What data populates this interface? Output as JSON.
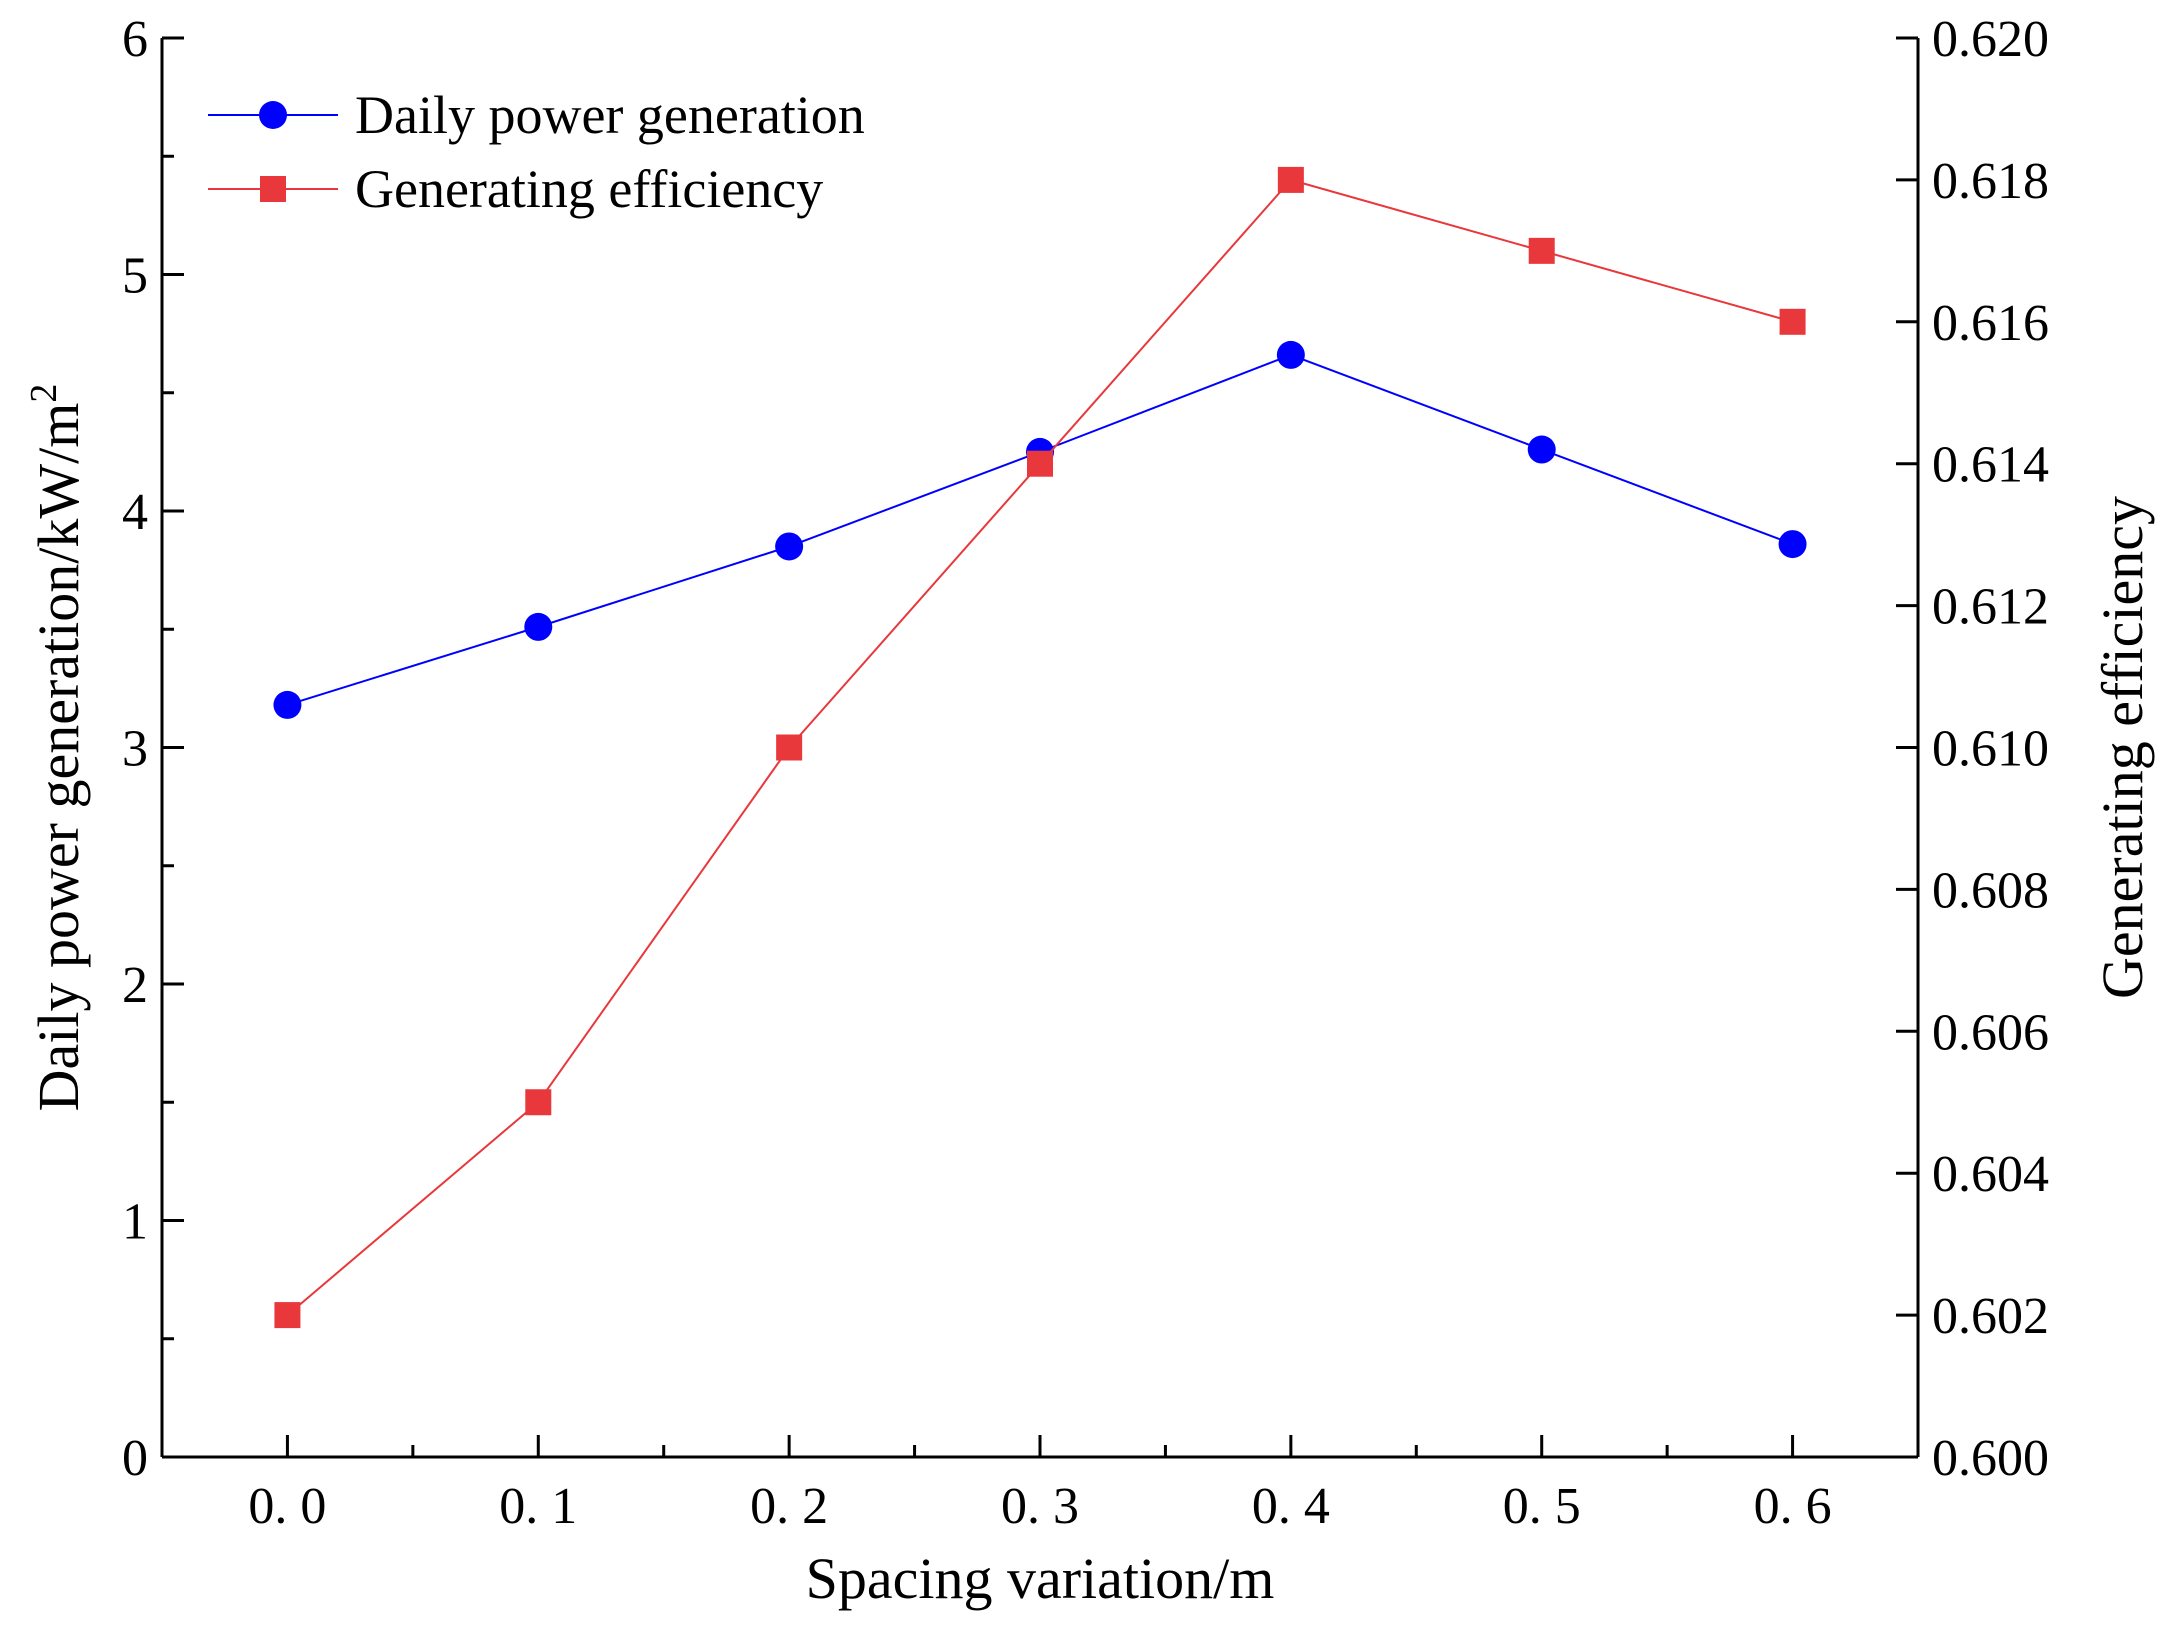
{
  "chart_data": {
    "type": "line",
    "x": [
      0.0,
      0.1,
      0.2,
      0.3,
      0.4,
      0.5,
      0.6
    ],
    "x_tick_labels": [
      "0. 0",
      "0. 1",
      "0. 2",
      "0. 3",
      "0. 4",
      "0. 5",
      "0. 6"
    ],
    "xlabel": "Spacing variation/m",
    "ylabel_left": {
      "text": "Daily power generation/",
      "unit": "kW/m",
      "sup": "2"
    },
    "ylabel_right": "Generating efficiency",
    "ylim_left": [
      0,
      6
    ],
    "ylim_right": [
      0.6,
      0.62
    ],
    "y_left_ticks": [
      0,
      1,
      2,
      3,
      4,
      5,
      6
    ],
    "y_left_tick_labels": [
      "0",
      "1",
      "2",
      "3",
      "4",
      "5",
      "6"
    ],
    "y_right_ticks": [
      0.6,
      0.602,
      0.604,
      0.606,
      0.608,
      0.61,
      0.612,
      0.614,
      0.616,
      0.618,
      0.62
    ],
    "y_right_tick_labels": [
      "0.600",
      "0.602",
      "0.604",
      "0.606",
      "0.608",
      "0.610",
      "0.612",
      "0.614",
      "0.616",
      "0.618",
      "0.620"
    ],
    "grid": false,
    "legend_position": "top-left",
    "series": [
      {
        "name": "Daily power generation",
        "axis": "left",
        "marker": "circle",
        "color": "#0000ff",
        "values": [
          3.18,
          3.51,
          3.85,
          4.25,
          4.66,
          4.26,
          3.86
        ]
      },
      {
        "name": "Generating efficiency",
        "axis": "right",
        "marker": "square",
        "color": "#e8383b",
        "values": [
          0.602,
          0.605,
          0.61,
          0.614,
          0.618,
          0.617,
          0.616
        ]
      }
    ]
  }
}
